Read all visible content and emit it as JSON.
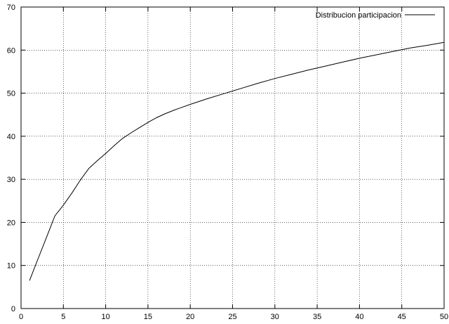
{
  "chart_data": {
    "type": "line",
    "title": "",
    "xlabel": "",
    "ylabel": "",
    "xlim": [
      0,
      50
    ],
    "ylim": [
      0,
      70
    ],
    "x_ticks": [
      0,
      5,
      10,
      15,
      20,
      25,
      30,
      35,
      40,
      45,
      50
    ],
    "y_ticks": [
      0,
      10,
      20,
      30,
      40,
      50,
      60,
      70
    ],
    "grid": true,
    "legend_position": "top-right",
    "series": [
      {
        "name": "Distribucion participacion",
        "color": "#000000",
        "x": [
          1,
          2,
          3,
          4,
          5,
          6,
          7,
          8,
          9,
          10,
          11,
          12,
          13,
          14,
          15,
          16,
          17,
          18,
          19,
          20,
          22,
          24,
          26,
          28,
          30,
          32,
          34,
          36,
          38,
          40,
          42,
          44,
          46,
          48,
          50
        ],
        "y": [
          6.5,
          11.5,
          16.5,
          21.5,
          24,
          26.8,
          29.8,
          32.5,
          34.3,
          36,
          37.8,
          39.5,
          40.8,
          42,
          43.2,
          44.3,
          45.2,
          46,
          46.7,
          47.4,
          48.7,
          49.9,
          51.1,
          52.3,
          53.4,
          54.4,
          55.4,
          56.3,
          57.2,
          58.1,
          58.9,
          59.7,
          60.5,
          61.1,
          61.8
        ]
      }
    ]
  }
}
